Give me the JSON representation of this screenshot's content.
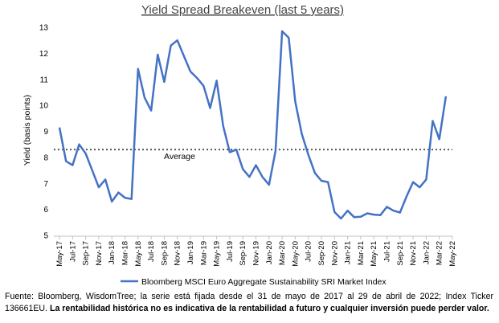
{
  "chart_data": {
    "type": "line",
    "title": "Yield Spread Breakeven (last 5 years)",
    "xlabel": "",
    "ylabel": "Yield (basis points)",
    "ylim": [
      5,
      13
    ],
    "yticks": [
      5,
      6,
      7,
      8,
      9,
      10,
      11,
      12,
      13
    ],
    "categories": [
      "May-17",
      "Jul-17",
      "Sep-17",
      "Nov-17",
      "Jan-18",
      "Mar-18",
      "May-18",
      "Jul-18",
      "Sep-18",
      "Nov-18",
      "Jan-19",
      "Mar-19",
      "May-19",
      "Jul-19",
      "Sep-19",
      "Nov-19",
      "Jan-20",
      "Mar-20",
      "May-20",
      "Jul-20",
      "Sep-20",
      "Nov-20",
      "Jan-21",
      "Mar-21",
      "May-21",
      "Jul-21",
      "Sep-21",
      "Nov-21",
      "Jan-22",
      "Mar-22",
      "May-22"
    ],
    "series": [
      {
        "name": "Bloomberg MSCI Euro Aggregate Sustainability SRI Market Index",
        "color": "#4472C4",
        "x": [
          0,
          0.5,
          1,
          1.5,
          2,
          2.5,
          3,
          3.5,
          4,
          4.5,
          5,
          5.5,
          6,
          6.5,
          7,
          7.5,
          8,
          8.5,
          9,
          9.5,
          10,
          10.5,
          11,
          11.5,
          12,
          12.5,
          13,
          13.5,
          14,
          14.5,
          15,
          15.5,
          16,
          16.5,
          17,
          17.5,
          18,
          18.5,
          19,
          19.5,
          20,
          20.5,
          21,
          21.5,
          22,
          22.5,
          23,
          23.5,
          24,
          24.5,
          25,
          25.5,
          26,
          26.5,
          27,
          27.5,
          28,
          28.5,
          29,
          29.5
        ],
        "y": [
          9.15,
          7.85,
          7.7,
          8.5,
          8.15,
          7.5,
          6.85,
          7.15,
          6.3,
          6.65,
          6.45,
          6.4,
          11.4,
          10.3,
          9.8,
          11.95,
          10.9,
          12.3,
          12.5,
          11.9,
          11.3,
          11.05,
          10.75,
          9.9,
          10.95,
          9.2,
          8.2,
          8.3,
          7.55,
          7.25,
          7.7,
          7.25,
          6.95,
          8.25,
          12.85,
          12.6,
          10.15,
          8.9,
          8.1,
          7.4,
          7.1,
          7.05,
          5.9,
          5.65,
          5.95,
          5.7,
          5.72,
          5.85,
          5.8,
          5.78,
          6.1,
          5.95,
          5.88,
          6.5,
          7.05,
          6.85,
          7.15,
          9.4,
          8.7,
          10.35
        ]
      }
    ],
    "reference_line": {
      "label": "Average",
      "value": 8.3,
      "color": "#555555",
      "style": "dotted"
    },
    "legend": {
      "position": "bottom",
      "label": "Bloomberg MSCI Euro Aggregate Sustainability SRI Market Index"
    },
    "grid": false
  },
  "caption": {
    "normal": "Fuente: Bloomberg, WisdomTree; la serie está fijada desde el 31 de mayo de 2017 al 29 de abril de 2022; Index Ticker 136661EU.",
    "bold": "La rentabilidad histórica no es indicativa de la rentabilidad a futuro y cualquier inversión puede perder valor."
  }
}
